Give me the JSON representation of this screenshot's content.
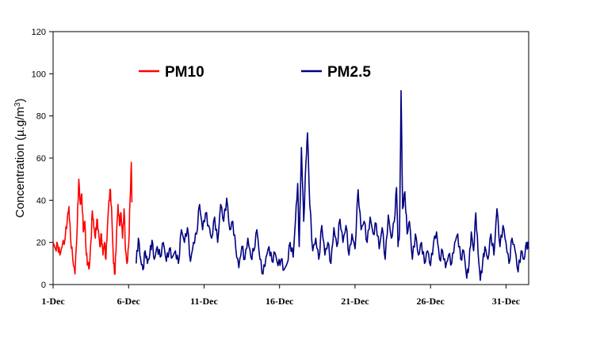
{
  "chart_data": {
    "type": "line",
    "ylabel": "Concentration (µg/m³)",
    "ylabel_parts": {
      "main": "Concentration (µ.g/m",
      "sup": "3",
      "close": ")"
    },
    "ylim": [
      0,
      120
    ],
    "yticks": [
      0,
      20,
      40,
      60,
      80,
      100,
      120
    ],
    "x_unit": "day of December (hourly data)",
    "xlim": [
      1,
      32.5
    ],
    "xticks": [
      1,
      6,
      11,
      16,
      21,
      26,
      31
    ],
    "xtick_labels": [
      "1-Dec",
      "6-Dec",
      "11-Dec",
      "16-Dec",
      "21-Dec",
      "26-Dec",
      "31-Dec"
    ],
    "grid": false,
    "legend_position": "top-left inside plot",
    "series": [
      {
        "name": "PM10",
        "color": "#ff0000",
        "anchors": [
          [
            1.0,
            20
          ],
          [
            1.15,
            17
          ],
          [
            1.3,
            19
          ],
          [
            1.45,
            14
          ],
          [
            1.6,
            18
          ],
          [
            1.8,
            22
          ],
          [
            1.95,
            32
          ],
          [
            2.05,
            37
          ],
          [
            2.15,
            23
          ],
          [
            2.3,
            12
          ],
          [
            2.45,
            5
          ],
          [
            2.6,
            28
          ],
          [
            2.7,
            50
          ],
          [
            2.8,
            38
          ],
          [
            2.9,
            43
          ],
          [
            3.0,
            25
          ],
          [
            3.1,
            30
          ],
          [
            3.2,
            14
          ],
          [
            3.3,
            10
          ],
          [
            3.4,
            8
          ],
          [
            3.5,
            20
          ],
          [
            3.6,
            35
          ],
          [
            3.7,
            27
          ],
          [
            3.8,
            22
          ],
          [
            3.9,
            31
          ],
          [
            4.0,
            26
          ],
          [
            4.1,
            18
          ],
          [
            4.2,
            24
          ],
          [
            4.3,
            14
          ],
          [
            4.4,
            20
          ],
          [
            4.5,
            12
          ],
          [
            4.6,
            28
          ],
          [
            4.7,
            40
          ],
          [
            4.8,
            45
          ],
          [
            4.9,
            30
          ],
          [
            5.0,
            10
          ],
          [
            5.1,
            5
          ],
          [
            5.2,
            24
          ],
          [
            5.3,
            38
          ],
          [
            5.4,
            28
          ],
          [
            5.5,
            34
          ],
          [
            5.6,
            22
          ],
          [
            5.7,
            36
          ],
          [
            5.8,
            16
          ],
          [
            5.9,
            10
          ],
          [
            6.0,
            18
          ],
          [
            6.1,
            40
          ],
          [
            6.18,
            58
          ],
          [
            6.22,
            39
          ]
        ]
      },
      {
        "name": "PM2.5",
        "color": "#000080",
        "anchors": [
          [
            6.5,
            10
          ],
          [
            6.65,
            22
          ],
          [
            6.8,
            12
          ],
          [
            6.95,
            7
          ],
          [
            7.1,
            16
          ],
          [
            7.25,
            10
          ],
          [
            7.4,
            14
          ],
          [
            7.55,
            21
          ],
          [
            7.7,
            12
          ],
          [
            7.9,
            18
          ],
          [
            8.1,
            13
          ],
          [
            8.3,
            20
          ],
          [
            8.5,
            11
          ],
          [
            8.7,
            17
          ],
          [
            8.9,
            13
          ],
          [
            9.1,
            16
          ],
          [
            9.3,
            10
          ],
          [
            9.5,
            26
          ],
          [
            9.7,
            20
          ],
          [
            9.9,
            27
          ],
          [
            10.1,
            11
          ],
          [
            10.3,
            20
          ],
          [
            10.5,
            24
          ],
          [
            10.7,
            38
          ],
          [
            10.9,
            26
          ],
          [
            11.1,
            34
          ],
          [
            11.3,
            28
          ],
          [
            11.5,
            22
          ],
          [
            11.7,
            32
          ],
          [
            11.9,
            20
          ],
          [
            12.1,
            38
          ],
          [
            12.3,
            30
          ],
          [
            12.5,
            41
          ],
          [
            12.7,
            26
          ],
          [
            12.9,
            30
          ],
          [
            13.1,
            17
          ],
          [
            13.3,
            8
          ],
          [
            13.5,
            18
          ],
          [
            13.7,
            12
          ],
          [
            13.9,
            22
          ],
          [
            14.1,
            13
          ],
          [
            14.3,
            16
          ],
          [
            14.5,
            26
          ],
          [
            14.7,
            12
          ],
          [
            14.9,
            5
          ],
          [
            15.1,
            13
          ],
          [
            15.3,
            18
          ],
          [
            15.5,
            11
          ],
          [
            15.7,
            15
          ],
          [
            15.9,
            9
          ],
          [
            16.1,
            12
          ],
          [
            16.3,
            7
          ],
          [
            16.5,
            10
          ],
          [
            16.7,
            20
          ],
          [
            16.9,
            13
          ],
          [
            17.05,
            30
          ],
          [
            17.2,
            48
          ],
          [
            17.3,
            18
          ],
          [
            17.45,
            65
          ],
          [
            17.6,
            30
          ],
          [
            17.75,
            58
          ],
          [
            17.85,
            72
          ],
          [
            18.0,
            38
          ],
          [
            18.2,
            16
          ],
          [
            18.4,
            22
          ],
          [
            18.6,
            12
          ],
          [
            18.8,
            28
          ],
          [
            19.0,
            14
          ],
          [
            19.2,
            20
          ],
          [
            19.4,
            10
          ],
          [
            19.6,
            27
          ],
          [
            19.8,
            18
          ],
          [
            20.0,
            31
          ],
          [
            20.2,
            20
          ],
          [
            20.4,
            28
          ],
          [
            20.6,
            14
          ],
          [
            20.8,
            24
          ],
          [
            21.0,
            17
          ],
          [
            21.2,
            45
          ],
          [
            21.4,
            26
          ],
          [
            21.6,
            30
          ],
          [
            21.8,
            20
          ],
          [
            22.0,
            32
          ],
          [
            22.2,
            24
          ],
          [
            22.4,
            29
          ],
          [
            22.6,
            17
          ],
          [
            22.8,
            27
          ],
          [
            23.0,
            12
          ],
          [
            23.2,
            33
          ],
          [
            23.4,
            22
          ],
          [
            23.6,
            30
          ],
          [
            23.75,
            46
          ],
          [
            23.85,
            18
          ],
          [
            23.95,
            25
          ],
          [
            24.05,
            92
          ],
          [
            24.15,
            36
          ],
          [
            24.3,
            44
          ],
          [
            24.45,
            24
          ],
          [
            24.6,
            30
          ],
          [
            24.8,
            12
          ],
          [
            25.0,
            24
          ],
          [
            25.2,
            14
          ],
          [
            25.4,
            20
          ],
          [
            25.6,
            10
          ],
          [
            25.8,
            16
          ],
          [
            26.0,
            9
          ],
          [
            26.2,
            20
          ],
          [
            26.4,
            25
          ],
          [
            26.6,
            12
          ],
          [
            26.8,
            16
          ],
          [
            27.0,
            8
          ],
          [
            27.2,
            14
          ],
          [
            27.4,
            10
          ],
          [
            27.6,
            20
          ],
          [
            27.8,
            24
          ],
          [
            28.0,
            12
          ],
          [
            28.2,
            16
          ],
          [
            28.4,
            3
          ],
          [
            28.55,
            10
          ],
          [
            28.7,
            25
          ],
          [
            28.85,
            16
          ],
          [
            29.0,
            34
          ],
          [
            29.15,
            15
          ],
          [
            29.3,
            2
          ],
          [
            29.45,
            10
          ],
          [
            29.6,
            18
          ],
          [
            29.8,
            12
          ],
          [
            30.0,
            24
          ],
          [
            30.2,
            14
          ],
          [
            30.4,
            36
          ],
          [
            30.6,
            18
          ],
          [
            30.8,
            28
          ],
          [
            31.0,
            20
          ],
          [
            31.2,
            10
          ],
          [
            31.4,
            22
          ],
          [
            31.6,
            16
          ],
          [
            31.8,
            6
          ],
          [
            32.0,
            16
          ],
          [
            32.2,
            12
          ],
          [
            32.35,
            20
          ],
          [
            32.5,
            17
          ]
        ]
      }
    ]
  }
}
